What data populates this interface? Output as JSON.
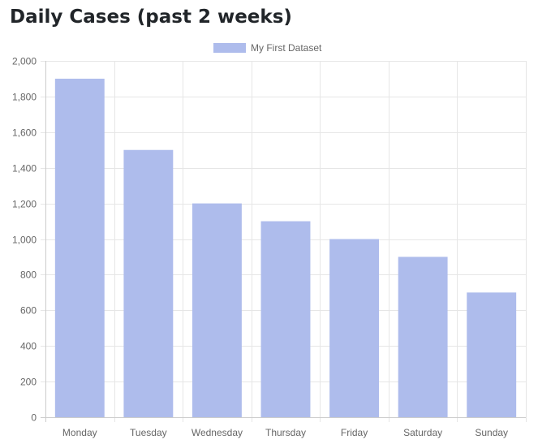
{
  "page": {
    "title": "Daily Cases (past 2 weeks)"
  },
  "chart_data": {
    "type": "bar",
    "categories": [
      "Monday",
      "Tuesday",
      "Wednesday",
      "Thursday",
      "Friday",
      "Saturday",
      "Sunday"
    ],
    "series": [
      {
        "name": "My First Dataset",
        "values": [
          1900,
          1500,
          1200,
          1100,
          1000,
          900,
          700
        ],
        "color": "#aebcec"
      }
    ],
    "ylim": [
      0,
      2000
    ],
    "yticks": [
      0,
      200,
      400,
      600,
      800,
      1000,
      1200,
      1400,
      1600,
      1800,
      2000
    ],
    "ytick_labels": [
      "0",
      "200",
      "400",
      "600",
      "800",
      "1,000",
      "1,200",
      "1,400",
      "1,600",
      "1,800",
      "2,000"
    ],
    "grid": true,
    "legend_position": "top-center",
    "colors": {
      "grid": "#e6e6e6",
      "axis": "#cccccc",
      "text": "#666666",
      "title": "#212529"
    }
  }
}
